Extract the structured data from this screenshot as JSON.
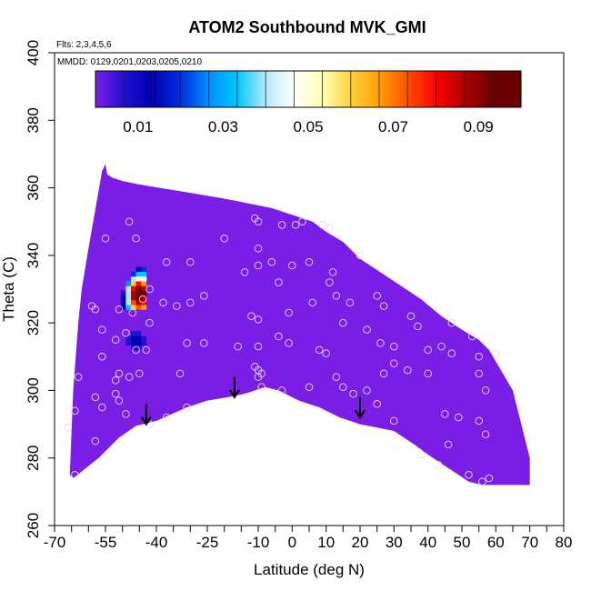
{
  "chart_data": {
    "type": "heatmap",
    "title": "ATOM2 Southbound MVK_GMI",
    "flights_note": "Flts: 2,3,4,5,6",
    "dates_note": "MMDD: 0129,0201,0203,0205,0210",
    "xlabel": "Latitude (deg N)",
    "ylabel": "Theta (C)",
    "xlim": [
      -70,
      80
    ],
    "ylim": [
      260,
      400
    ],
    "x_ticks": [
      -70,
      -55,
      -40,
      -25,
      -10,
      0,
      10,
      20,
      30,
      40,
      50,
      60,
      70,
      80
    ],
    "y_ticks": [
      260,
      280,
      300,
      320,
      340,
      360,
      380,
      400
    ],
    "colorbar": {
      "range": [
        0,
        0.1
      ],
      "tick_values": [
        0.01,
        0.03,
        0.05,
        0.07,
        0.09
      ],
      "tick_labels": [
        "0.01",
        "0.03",
        "0.05",
        "0.07",
        "0.09"
      ],
      "colors": [
        "#7a1ee6",
        "#2010d0",
        "#0000b0",
        "#0030e0",
        "#0090ff",
        "#00c8ff",
        "#b8e8ff",
        "#ffffff",
        "#ffffb0",
        "#ffd040",
        "#ffa000",
        "#ff5000",
        "#ff0000",
        "#b00000",
        "#6a0000"
      ]
    },
    "background_value": 0.0,
    "domain_outline": [
      [
        -64.5,
        274
      ],
      [
        -57,
        280
      ],
      [
        -51,
        286
      ],
      [
        -46,
        289.5
      ],
      [
        -40,
        291
      ],
      [
        -31,
        295
      ],
      [
        -25,
        297
      ],
      [
        -19,
        298
      ],
      [
        -14,
        299
      ],
      [
        -8,
        301
      ],
      [
        -4,
        300
      ],
      [
        2,
        297
      ],
      [
        8,
        295
      ],
      [
        14,
        292
      ],
      [
        20,
        290
      ],
      [
        25,
        289
      ],
      [
        30,
        288
      ],
      [
        36,
        284
      ],
      [
        40,
        281
      ],
      [
        46,
        277
      ],
      [
        52,
        273
      ],
      [
        56,
        272
      ],
      [
        70,
        272
      ],
      [
        70,
        280
      ],
      [
        65,
        300
      ],
      [
        58,
        312
      ],
      [
        55,
        315
      ],
      [
        50,
        318
      ],
      [
        44,
        322
      ],
      [
        38,
        327
      ],
      [
        32,
        331
      ],
      [
        26,
        335
      ],
      [
        20,
        339
      ],
      [
        15,
        344
      ],
      [
        10,
        347
      ],
      [
        6,
        350
      ],
      [
        0,
        352
      ],
      [
        -6,
        354
      ],
      [
        -11,
        355
      ],
      [
        -16,
        356
      ],
      [
        -21,
        357
      ],
      [
        -27,
        358
      ],
      [
        -33,
        359
      ],
      [
        -39,
        360
      ],
      [
        -45,
        361
      ],
      [
        -50,
        362
      ],
      [
        -53,
        363
      ],
      [
        -54.5,
        364
      ],
      [
        -55,
        367
      ],
      [
        -56,
        365
      ],
      [
        -60,
        342
      ],
      [
        -62,
        330
      ],
      [
        -63,
        320
      ],
      [
        -64.5,
        300
      ],
      [
        -65,
        288
      ],
      [
        -65.5,
        275
      ]
    ],
    "anomalies": [
      {
        "region": "triangle",
        "lat_range": [
          -52,
          -44
        ],
        "theta_range": [
          324,
          336
        ],
        "peak_value": 0.09,
        "peak_lat": -45.5,
        "peak_theta": 329
      },
      {
        "region": "blob",
        "lat_range": [
          -49,
          -42
        ],
        "theta_range": [
          312,
          318
        ],
        "peak_value": 0.02,
        "peak_lat": -46,
        "peak_theta": 315
      },
      {
        "region": "streak",
        "lat_range": [
          -54,
          -45
        ],
        "theta_range": [
          298,
          308
        ],
        "peak_value": 0.005,
        "peak_lat": -49,
        "peak_theta": 303
      }
    ],
    "arrows": [
      {
        "lat": -43,
        "theta_from": 296,
        "theta_to": 290
      },
      {
        "lat": -17,
        "theta_from": 304,
        "theta_to": 298
      },
      {
        "lat": 20,
        "theta_from": 298,
        "theta_to": 292
      }
    ],
    "sample_points": [
      [
        -48,
        350
      ],
      [
        -46,
        345
      ],
      [
        -55,
        345
      ],
      [
        -37,
        338
      ],
      [
        -30,
        338
      ],
      [
        -20,
        345
      ],
      [
        -10,
        350
      ],
      [
        -11,
        351
      ],
      [
        -3,
        349
      ],
      [
        1,
        349
      ],
      [
        3,
        350
      ],
      [
        9,
        349
      ],
      [
        11,
        348
      ],
      [
        -10,
        342
      ],
      [
        -6,
        338
      ],
      [
        -10,
        337
      ],
      [
        0,
        337
      ],
      [
        5,
        338
      ],
      [
        12,
        335
      ],
      [
        20,
        340
      ],
      [
        -14,
        335
      ],
      [
        -26,
        328
      ],
      [
        -30,
        326
      ],
      [
        -34,
        325
      ],
      [
        -38,
        326
      ],
      [
        -4,
        332
      ],
      [
        11,
        332
      ],
      [
        13,
        328
      ],
      [
        17,
        326
      ],
      [
        25,
        328
      ],
      [
        27,
        325
      ],
      [
        35,
        322
      ],
      [
        47,
        320
      ],
      [
        53,
        316
      ],
      [
        -42,
        330
      ],
      [
        -44,
        327
      ],
      [
        -47,
        323
      ],
      [
        -51,
        324
      ],
      [
        -56,
        318
      ],
      [
        -58,
        324
      ],
      [
        -59,
        325
      ],
      [
        -42,
        320
      ],
      [
        -12,
        322
      ],
      [
        -10,
        321
      ],
      [
        -1,
        323
      ],
      [
        6,
        326
      ],
      [
        15,
        320
      ],
      [
        22,
        318
      ],
      [
        26,
        314
      ],
      [
        30,
        313
      ],
      [
        37,
        319
      ],
      [
        47,
        311
      ],
      [
        55,
        310
      ],
      [
        60,
        311
      ],
      [
        -49,
        317
      ],
      [
        -52,
        315
      ],
      [
        -46,
        312
      ],
      [
        -43,
        312
      ],
      [
        -31,
        314
      ],
      [
        -26,
        314
      ],
      [
        -16,
        313
      ],
      [
        -10,
        313
      ],
      [
        -4,
        316
      ],
      [
        -1,
        314
      ],
      [
        8,
        312
      ],
      [
        10,
        311
      ],
      [
        -52,
        303
      ],
      [
        -51,
        305
      ],
      [
        -56,
        310
      ],
      [
        -63,
        304
      ],
      [
        -48,
        304
      ],
      [
        -45,
        305
      ],
      [
        -33,
        305
      ],
      [
        -11,
        307
      ],
      [
        -10,
        306
      ],
      [
        -9,
        305
      ],
      [
        -10,
        304
      ],
      [
        -9,
        301
      ],
      [
        -3,
        300
      ],
      [
        5,
        301
      ],
      [
        13,
        304
      ],
      [
        15,
        301
      ],
      [
        18,
        299
      ],
      [
        22,
        300
      ],
      [
        27,
        305
      ],
      [
        30,
        308
      ],
      [
        34,
        306
      ],
      [
        40,
        305
      ],
      [
        40,
        312
      ],
      [
        44,
        313
      ],
      [
        55,
        305
      ],
      [
        57,
        300
      ],
      [
        -51,
        297
      ],
      [
        -52,
        299
      ],
      [
        -56,
        295
      ],
      [
        -58,
        298
      ],
      [
        -49,
        293
      ],
      [
        -42,
        290
      ],
      [
        -37,
        292
      ],
      [
        -31,
        295
      ],
      [
        25,
        296
      ],
      [
        30,
        291
      ],
      [
        45,
        293
      ],
      [
        49,
        292
      ],
      [
        55,
        291
      ],
      [
        57,
        287
      ],
      [
        -58,
        285
      ],
      [
        -64,
        294
      ],
      [
        -66,
        289
      ],
      [
        -64,
        275
      ],
      [
        38,
        281
      ],
      [
        43,
        278
      ],
      [
        52,
        275
      ],
      [
        56,
        273
      ],
      [
        58,
        274
      ],
      [
        46,
        284
      ]
    ]
  }
}
